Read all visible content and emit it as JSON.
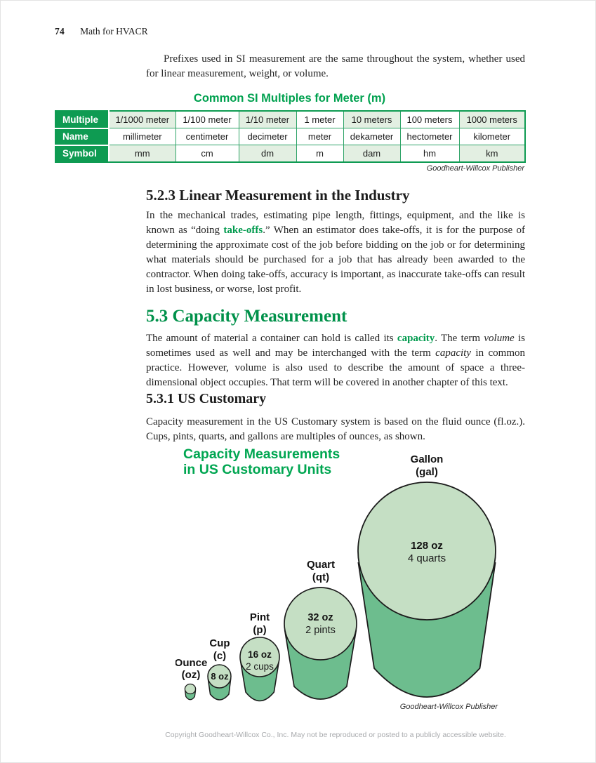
{
  "page": {
    "number": "74",
    "book_title": "Math for HVACR",
    "footer": "Copyright Goodheart-Willcox Co., Inc. May not be reproduced or posted to a publicly accessible website."
  },
  "colors": {
    "brand_green": "#00A04F",
    "table_header_green": "#0E9B52",
    "table_tint": "#E3EFE2",
    "cylinder_top_green": "#C5DFC4",
    "cylinder_body_green": "#6DBD8E"
  },
  "intro": {
    "text": "Prefixes used in SI measurement are the same throughout the system, whether used for linear measurement, weight, or volume."
  },
  "si_table": {
    "title": "Common SI Multiples for Meter (m)",
    "credit": "Goodheart-Willcox Publisher",
    "rows": [
      {
        "header": "Multiple",
        "cells": [
          "1/1000 meter",
          "1/100 meter",
          "1/10 meter",
          "1 meter",
          "10 meters",
          "100 meters",
          "1000 meters"
        ]
      },
      {
        "header": "Name",
        "cells": [
          "millimeter",
          "centimeter",
          "decimeter",
          "meter",
          "dekameter",
          "hectometer",
          "kilometer"
        ]
      },
      {
        "header": "Symbol",
        "cells": [
          "mm",
          "cm",
          "dm",
          "m",
          "dam",
          "hm",
          "km"
        ]
      }
    ]
  },
  "sections": {
    "s523": {
      "heading": "5.2.3 Linear Measurement in the Industry",
      "paragraph": [
        {
          "t": "In the mechanical trades, estimating pipe length, fittings, equipment, and the like is known as “doing "
        },
        {
          "t": "take-offs",
          "s": "term"
        },
        {
          "t": ".” When an estimator does take-offs, it is for the purpose of determining the approximate cost of the job before bidding on the job or for determining what materials should be purchased for a job that has already been awarded to the contractor. When doing take-offs, accuracy is important, as inaccurate take-offs can result in lost business, or worse, lost profit."
        }
      ]
    },
    "s53": {
      "heading": "5.3 Capacity Measurement",
      "paragraph": [
        {
          "t": "The amount of material a container can hold is called its "
        },
        {
          "t": "capacity",
          "s": "term"
        },
        {
          "t": ". The term "
        },
        {
          "t": "volume",
          "s": "i"
        },
        {
          "t": " is sometimes used as well and may be interchanged with the term "
        },
        {
          "t": "capacity",
          "s": "i"
        },
        {
          "t": " in common practice. However, volume is also used to describe the amount of space a three-dimensional object occupies. That term will be covered in another chapter of this text."
        }
      ]
    },
    "s531": {
      "heading": "5.3.1 US Customary",
      "paragraph": [
        {
          "t": "Capacity measurement in the US Customary system is based on the fluid ounce (fl.oz.). Cups, pints, quarts, and gallons are multiples of ounces, as shown."
        }
      ]
    }
  },
  "figure": {
    "title_line1": "Capacity Measurements",
    "title_line2": "in US Customary Units",
    "credit": "Goodheart-Willcox Publisher",
    "items": [
      {
        "name": "Ounce",
        "abbr": "(oz)",
        "value": "",
        "sub": ""
      },
      {
        "name": "Cup",
        "abbr": "(c)",
        "value": "8 oz",
        "sub": ""
      },
      {
        "name": "Pint",
        "abbr": "(p)",
        "value": "16 oz",
        "sub": "2 cups"
      },
      {
        "name": "Quart",
        "abbr": "(qt)",
        "value": "32 oz",
        "sub": "2 pints"
      },
      {
        "name": "Gallon",
        "abbr": "(gal)",
        "value": "128 oz",
        "sub": "4 quarts"
      }
    ]
  }
}
